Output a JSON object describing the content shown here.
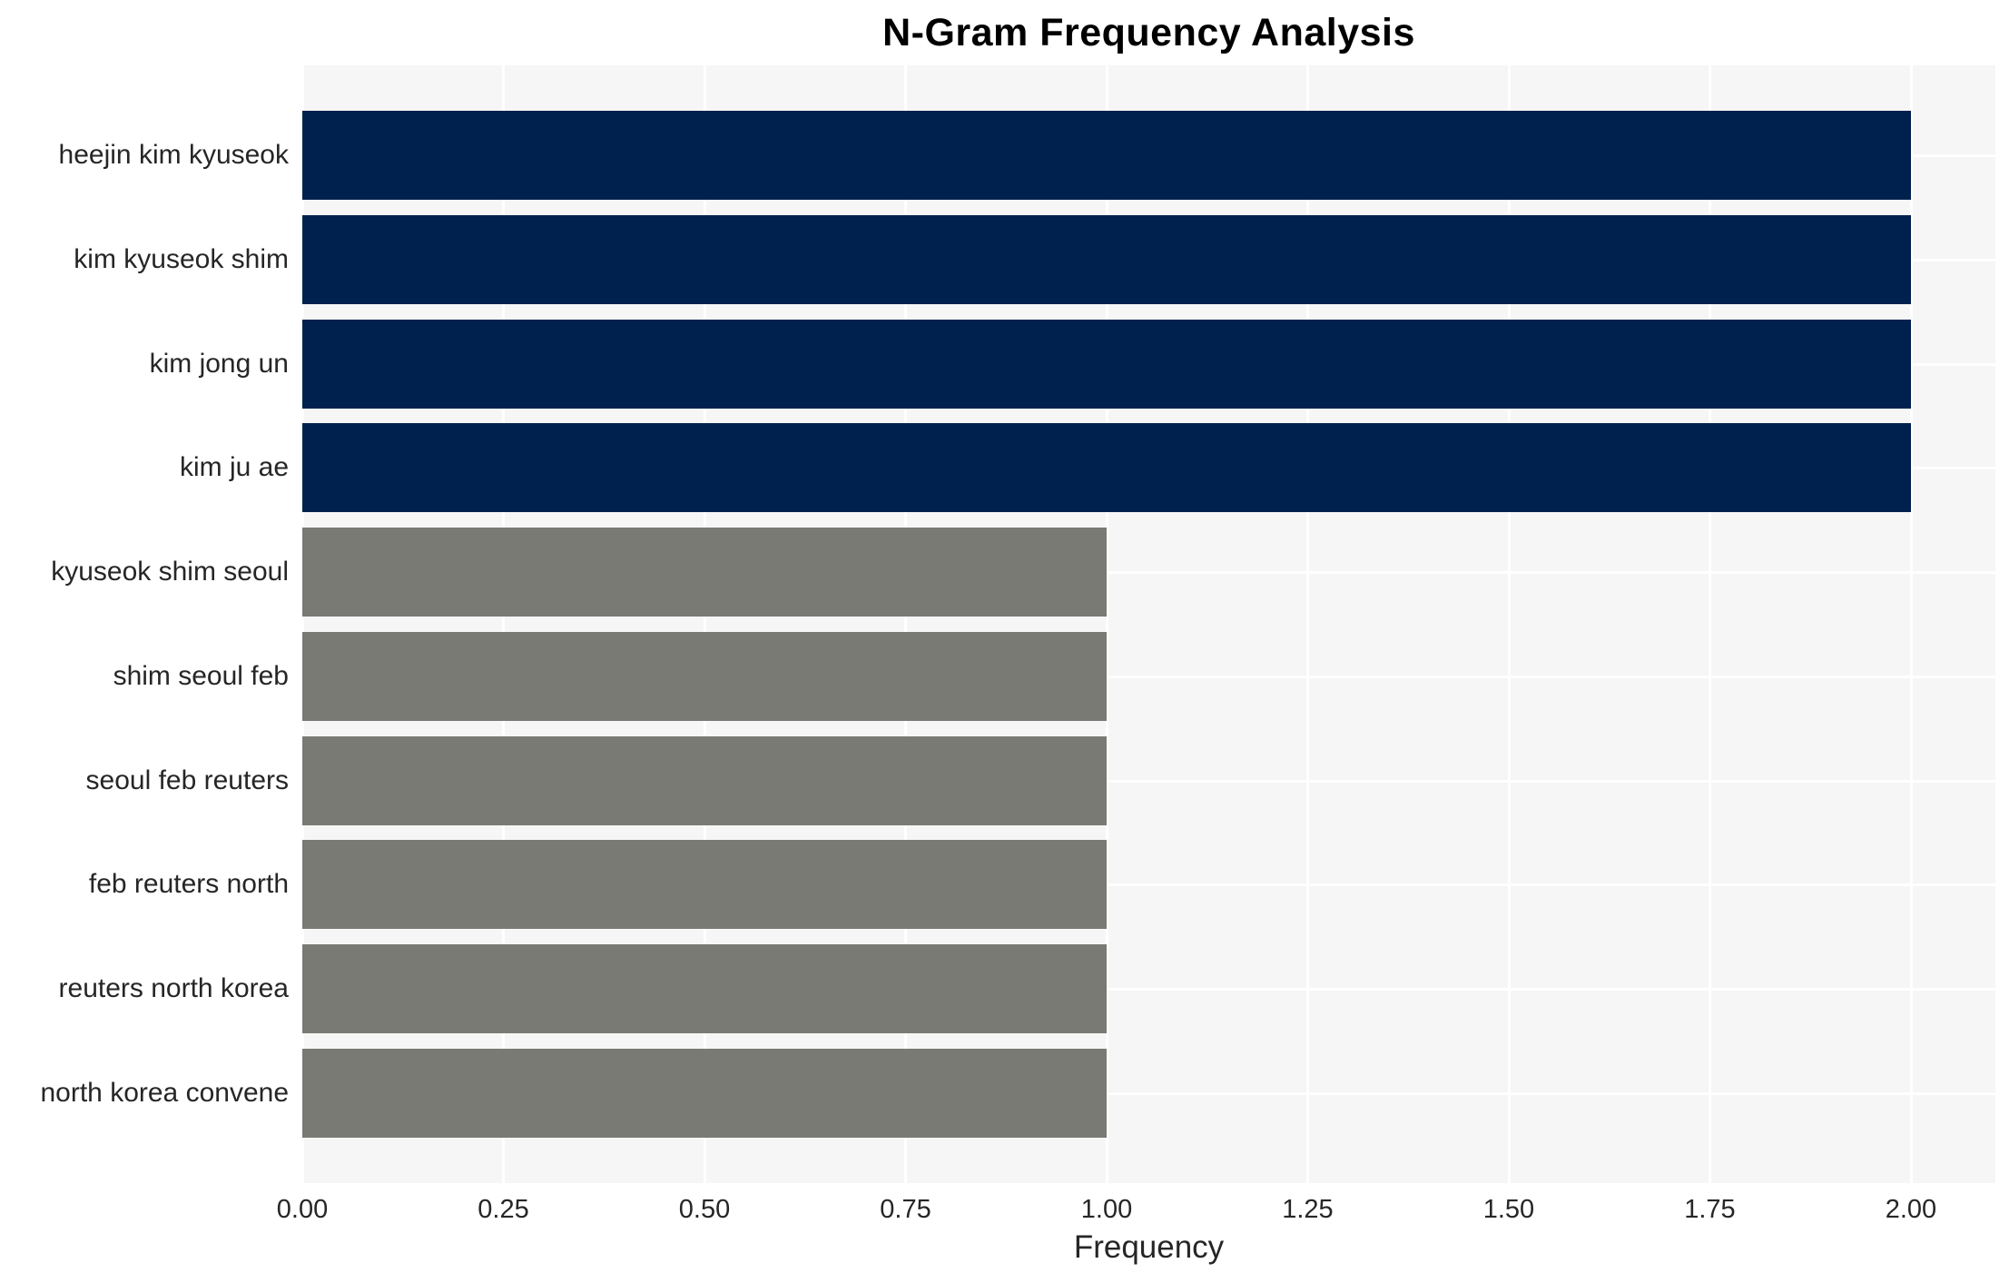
{
  "chart_data": {
    "type": "bar",
    "orientation": "horizontal",
    "title": "N-Gram Frequency Analysis",
    "xlabel": "Frequency",
    "ylabel": "",
    "categories": [
      "heejin kim kyuseok",
      "kim kyuseok shim",
      "kim jong un",
      "kim ju ae",
      "kyuseok shim seoul",
      "shim seoul feb",
      "seoul feb reuters",
      "feb reuters north",
      "reuters north korea",
      "north korea convene"
    ],
    "values": [
      2,
      2,
      2,
      2,
      1,
      1,
      1,
      1,
      1,
      1
    ],
    "bar_colors": [
      "#00214d",
      "#00214d",
      "#00214d",
      "#00214d",
      "#7a7a75",
      "#7a7a75",
      "#7a7a75",
      "#7a7a75",
      "#7a7a75",
      "#7a7a75"
    ],
    "xtick_labels": [
      "0.00",
      "0.25",
      "0.50",
      "0.75",
      "1.00",
      "1.25",
      "1.50",
      "1.75",
      "2.00"
    ],
    "xtick_values": [
      0,
      0.25,
      0.5,
      0.75,
      1.0,
      1.25,
      1.5,
      1.75,
      2.0
    ],
    "xlim": [
      0,
      2.105
    ],
    "grid": true,
    "legend": false,
    "colors": {
      "bar_high": "#00214d",
      "bar_low": "#7a7a75",
      "plot_background": "#f6f6f6",
      "grid_line": "#ffffff",
      "tick_text": "#262626",
      "title_text": "#000000"
    }
  }
}
